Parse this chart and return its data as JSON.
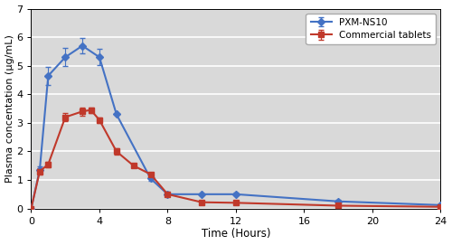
{
  "ns10_x": [
    0,
    0.5,
    1,
    2,
    3,
    4,
    5,
    7,
    8,
    10,
    12,
    18,
    24
  ],
  "ns10_y": [
    0,
    1.35,
    4.65,
    5.3,
    5.7,
    5.3,
    3.3,
    1.05,
    0.5,
    0.5,
    0.5,
    0.25,
    0.12
  ],
  "ns10_yerr": [
    0,
    0.12,
    0.32,
    0.32,
    0.28,
    0.28,
    0.0,
    0.08,
    0.08,
    0.0,
    0.05,
    0.07,
    0.0
  ],
  "ct_x": [
    0,
    0.5,
    1,
    2,
    3,
    3.5,
    4,
    5,
    6,
    7,
    8,
    10,
    12,
    18,
    24
  ],
  "ct_y": [
    0,
    1.3,
    1.55,
    3.2,
    3.4,
    3.45,
    3.1,
    2.0,
    1.5,
    1.2,
    0.5,
    0.22,
    0.2,
    0.1,
    0.06
  ],
  "ct_yerr": [
    0,
    0.1,
    0.1,
    0.15,
    0.15,
    0.1,
    0.1,
    0.1,
    0.0,
    0.0,
    0.05,
    0.0,
    0.05,
    0.0,
    0.0
  ],
  "ns10_color": "#4472C4",
  "ct_color": "#C0392B",
  "xlabel": "Time (Hours)",
  "ylabel": "Plasma concentation (μg/mL)",
  "ylim": [
    0,
    7
  ],
  "xlim": [
    0,
    24
  ],
  "xticks": [
    0,
    4,
    8,
    12,
    16,
    20,
    24
  ],
  "yticks": [
    0,
    1,
    2,
    3,
    4,
    5,
    6,
    7
  ],
  "legend_ns10": "PXM-NS10",
  "legend_ct": "Commercial tablets",
  "bg_color": "#D9D9D9",
  "grid_color": "#FFFFFF",
  "fig_bg": "#FFFFFF"
}
